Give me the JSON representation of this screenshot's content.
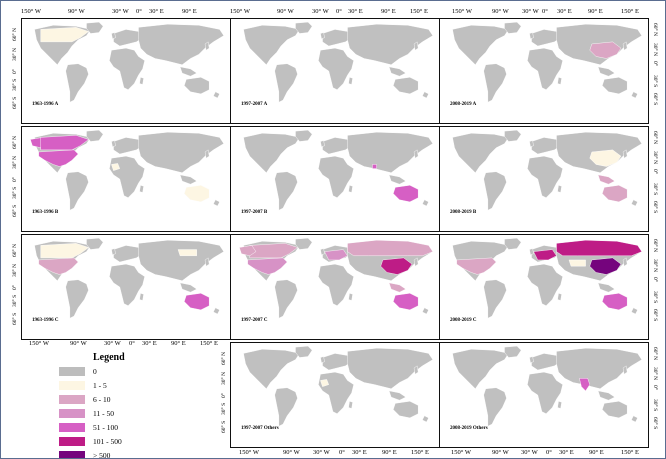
{
  "axis": {
    "lon_labels": [
      "150° W",
      "90° W",
      "30° W",
      "0°",
      "30° E",
      "90° E",
      "150° E"
    ],
    "lat_labels": [
      "60° N",
      "30° N",
      "0°",
      "30° S",
      "60° S"
    ]
  },
  "colors": {
    "ocean": "#ffffff",
    "no_data": "#c0c0c0",
    "border": "#ffffff"
  },
  "legend": {
    "title": "Legend",
    "items": [
      {
        "label": "0",
        "color": "#bdbdbd"
      },
      {
        "label": "1 - 5",
        "color": "#fdf6e3"
      },
      {
        "label": "6 - 10",
        "color": "#dba6c4"
      },
      {
        "label": "11 - 50",
        "color": "#d792c6"
      },
      {
        "label": "51 - 100",
        "color": "#d65fc4"
      },
      {
        "label": "101 - 500",
        "color": "#be1c86"
      },
      {
        "label": "> 500",
        "color": "#75047d"
      }
    ]
  },
  "panels": [
    {
      "id": "p1",
      "label": "1963-1996 A",
      "highlights": [
        {
          "region": "north_america",
          "class": 1
        },
        {
          "region": "canada",
          "class": 1
        }
      ]
    },
    {
      "id": "p2",
      "label": "1997-2007 A",
      "highlights": []
    },
    {
      "id": "p3",
      "label": "2008-2019 A",
      "highlights": [
        {
          "region": "china",
          "class": 2
        }
      ]
    },
    {
      "id": "p4",
      "label": "1963-1996 B",
      "highlights": [
        {
          "region": "usa",
          "class": 4
        },
        {
          "region": "alaska",
          "class": 4
        },
        {
          "region": "canada",
          "class": 4
        },
        {
          "region": "australia",
          "class": 1
        },
        {
          "region": "west_africa",
          "class": 1
        }
      ]
    },
    {
      "id": "p5",
      "label": "1997-2007 B",
      "highlights": [
        {
          "region": "australia",
          "class": 4
        },
        {
          "region": "east_india",
          "class": 4
        }
      ]
    },
    {
      "id": "p6",
      "label": "2008-2019 B",
      "highlights": [
        {
          "region": "se_asia",
          "class": 2
        },
        {
          "region": "australia",
          "class": 2
        },
        {
          "region": "china",
          "class": 1
        }
      ]
    },
    {
      "id": "p7",
      "label": "1963-1996 C",
      "highlights": [
        {
          "region": "usa",
          "class": 2
        },
        {
          "region": "australia",
          "class": 4
        },
        {
          "region": "canada",
          "class": 1
        },
        {
          "region": "north_asia",
          "class": 1
        }
      ]
    },
    {
      "id": "p8",
      "label": "1997-2007 C",
      "highlights": [
        {
          "region": "canada",
          "class": 2
        },
        {
          "region": "alaska",
          "class": 2
        },
        {
          "region": "usa",
          "class": 3
        },
        {
          "region": "russia",
          "class": 2
        },
        {
          "region": "china",
          "class": 5
        },
        {
          "region": "europe",
          "class": 3
        },
        {
          "region": "australia",
          "class": 4
        },
        {
          "region": "se_asia",
          "class": 2
        }
      ]
    },
    {
      "id": "p9",
      "label": "2008-2019 C",
      "highlights": [
        {
          "region": "russia",
          "class": 5
        },
        {
          "region": "china",
          "class": 6
        },
        {
          "region": "usa",
          "class": 2
        },
        {
          "region": "europe",
          "class": 5
        },
        {
          "region": "australia",
          "class": 4
        },
        {
          "region": "central_asia",
          "class": 1
        }
      ]
    },
    {
      "id": "p10",
      "label": "1997-2007 Others",
      "highlights": [
        {
          "region": "west_africa",
          "class": 1
        }
      ]
    },
    {
      "id": "p11",
      "label": "2008-2019 Others",
      "highlights": [
        {
          "region": "india",
          "class": 4
        }
      ]
    }
  ]
}
